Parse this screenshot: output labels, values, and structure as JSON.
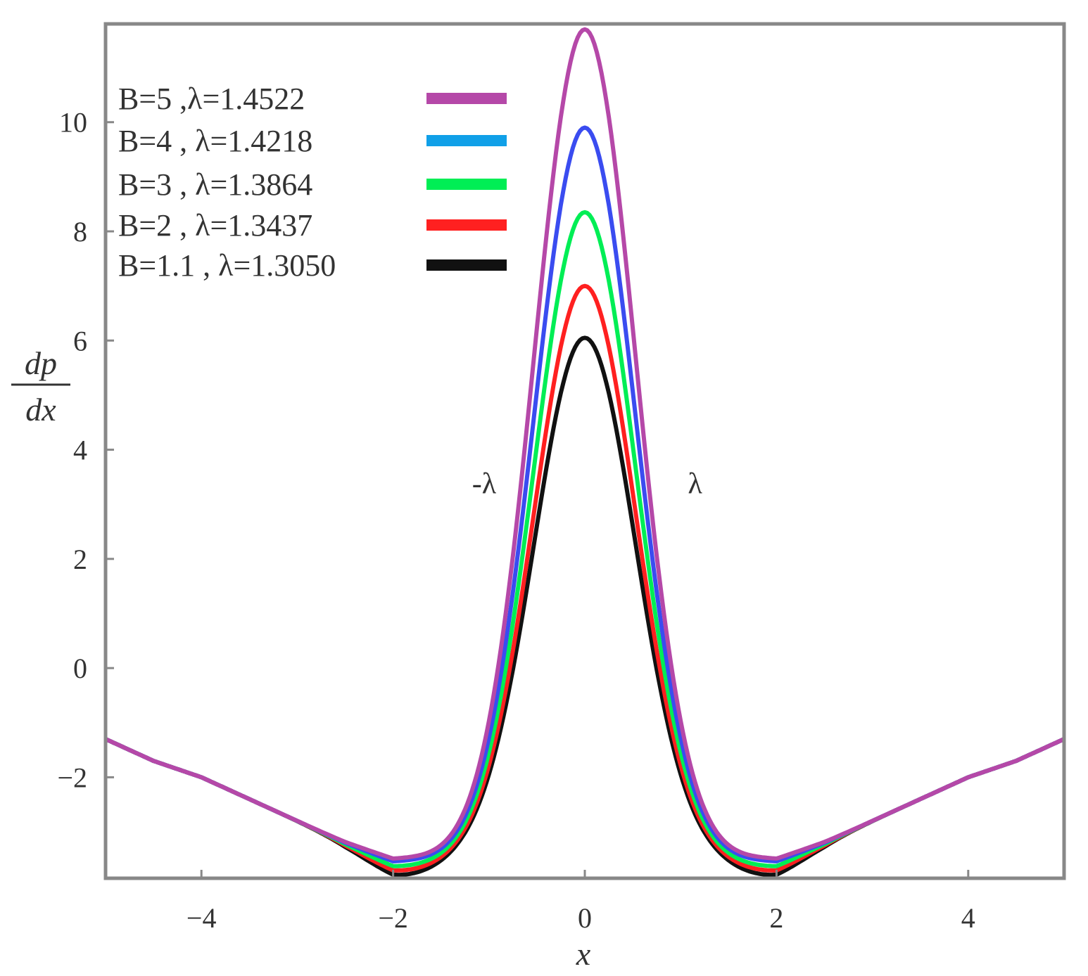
{
  "chart_data": {
    "type": "line",
    "xlabel": "x",
    "ylabel_numerator": "dp",
    "ylabel_denominator": "dx",
    "xlim": [
      -5,
      5
    ],
    "ylim": [
      -3.85,
      11.8
    ],
    "x_ticks": [
      -4,
      -2,
      0,
      2,
      4
    ],
    "x_tick_labels": [
      "−4",
      "−2",
      "0",
      "2",
      "4"
    ],
    "y_ticks": [
      -2,
      0,
      2,
      4,
      6,
      8,
      10
    ],
    "y_tick_labels": [
      "−2",
      "0",
      "2",
      "4",
      "6",
      "8",
      "10"
    ],
    "grid": false,
    "legend_position": "top-left",
    "legend": [
      {
        "label": "B=5    ,λ=1.4522",
        "color": "#b548a8"
      },
      {
        "label": "B=4    , λ=1.4218",
        "color": "#10a0e8"
      },
      {
        "label": "B=3    , λ=1.3864",
        "color": "#00ee55"
      },
      {
        "label": "B=2    , λ=1.3437",
        "color": "#ff2020"
      },
      {
        "label": "B=1.1 , λ=1.3050",
        "color": "#111111"
      }
    ],
    "annotations": [
      {
        "text": "-λ",
        "x": -1.05,
        "y": 3.2
      },
      {
        "text": "λ",
        "x": 1.15,
        "y": 3.2
      }
    ],
    "series": [
      {
        "name": "B=1.1 , λ=1.3050",
        "color": "#111111",
        "peak": 6.05,
        "min": -3.8
      },
      {
        "name": "B=2    , λ=1.3437",
        "color": "#ff2020",
        "peak": 7.0,
        "min": -3.72
      },
      {
        "name": "B=3    , λ=1.3864",
        "color": "#00ee55",
        "peak": 8.35,
        "min": -3.64
      },
      {
        "name": "B=4    , λ=1.4218",
        "color": "#3a4cf0",
        "peak": 9.9,
        "min": -3.55
      },
      {
        "name": "B=5    ,λ=1.4522",
        "color": "#b548a8",
        "peak": 11.7,
        "min": -3.5
      }
    ],
    "tail_values": {
      "x": [
        2.0,
        2.5,
        3.0,
        3.5,
        4.0,
        4.5,
        5.0
      ],
      "y": [
        -3.55,
        -3.2,
        -2.8,
        -2.4,
        -2.0,
        -1.7,
        -1.3
      ]
    }
  }
}
